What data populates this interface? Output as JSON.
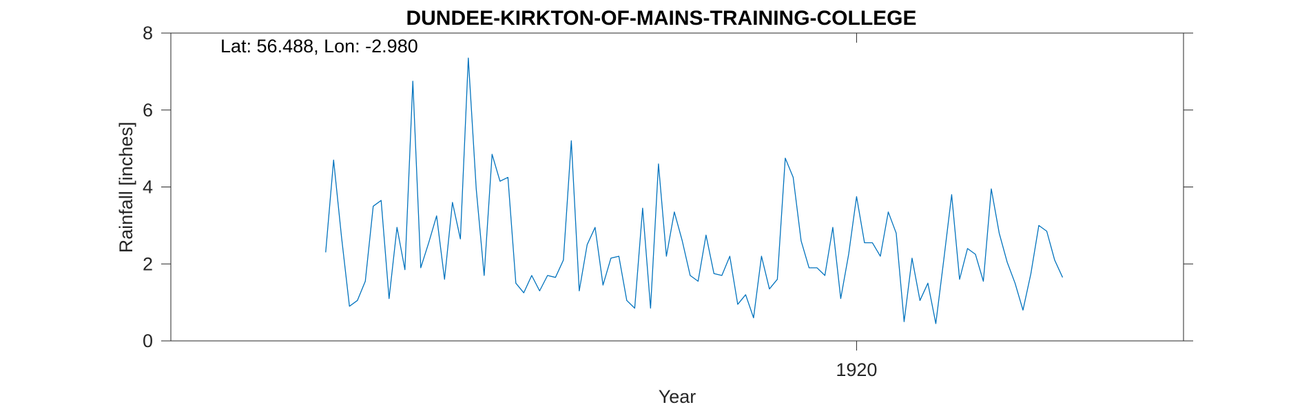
{
  "chart_data": {
    "type": "line",
    "title": "DUNDEE-KIRKTON-OF-MAINS-TRAINING-COLLEGE",
    "annotation": "Lat: 56.488, Lon: -2.980",
    "xlabel": "Year",
    "ylabel": "Rainfall [inches]",
    "xlim": [
      1876.73,
      1940.63
    ],
    "ylim": [
      0,
      8
    ],
    "xticks": [
      1920
    ],
    "xtick_labels": [
      "1920"
    ],
    "yticks": [
      0,
      2,
      4,
      6,
      8
    ],
    "ytick_labels": [
      "0",
      "2",
      "4",
      "6",
      "8"
    ],
    "grid": false,
    "series_color": "#0072BD",
    "series": [
      {
        "x_start": 1886.5,
        "x_step": 0.5,
        "values": [
          2.3,
          4.7,
          2.7,
          0.9,
          1.05,
          1.55,
          3.5,
          3.65,
          1.1,
          2.95,
          1.85,
          6.75,
          1.9,
          2.55,
          3.25,
          1.6,
          3.6,
          2.65,
          7.35,
          3.95,
          1.7,
          4.85,
          4.15,
          4.25,
          1.5,
          1.25,
          1.7,
          1.3,
          1.7,
          1.65,
          2.1,
          5.2,
          1.3,
          2.5,
          2.95,
          1.45,
          2.15,
          2.2,
          1.05,
          0.85,
          3.45,
          0.85,
          4.6,
          2.2,
          3.35,
          2.6,
          1.7,
          1.55,
          2.75,
          1.75,
          1.7,
          2.2,
          0.95,
          1.2,
          0.6,
          2.2,
          1.35,
          1.6,
          4.75,
          4.25,
          2.6,
          1.9,
          1.9,
          1.7,
          2.95,
          1.1,
          2.25,
          3.75,
          2.55,
          2.55,
          2.2,
          3.35,
          2.8,
          0.5,
          2.15,
          1.05,
          1.5,
          0.45,
          2.1,
          3.8,
          1.6,
          2.4,
          2.25,
          1.55,
          3.95,
          2.8,
          2.05,
          1.5,
          0.8,
          1.75,
          3.0,
          2.85,
          2.1,
          1.65
        ]
      }
    ]
  }
}
